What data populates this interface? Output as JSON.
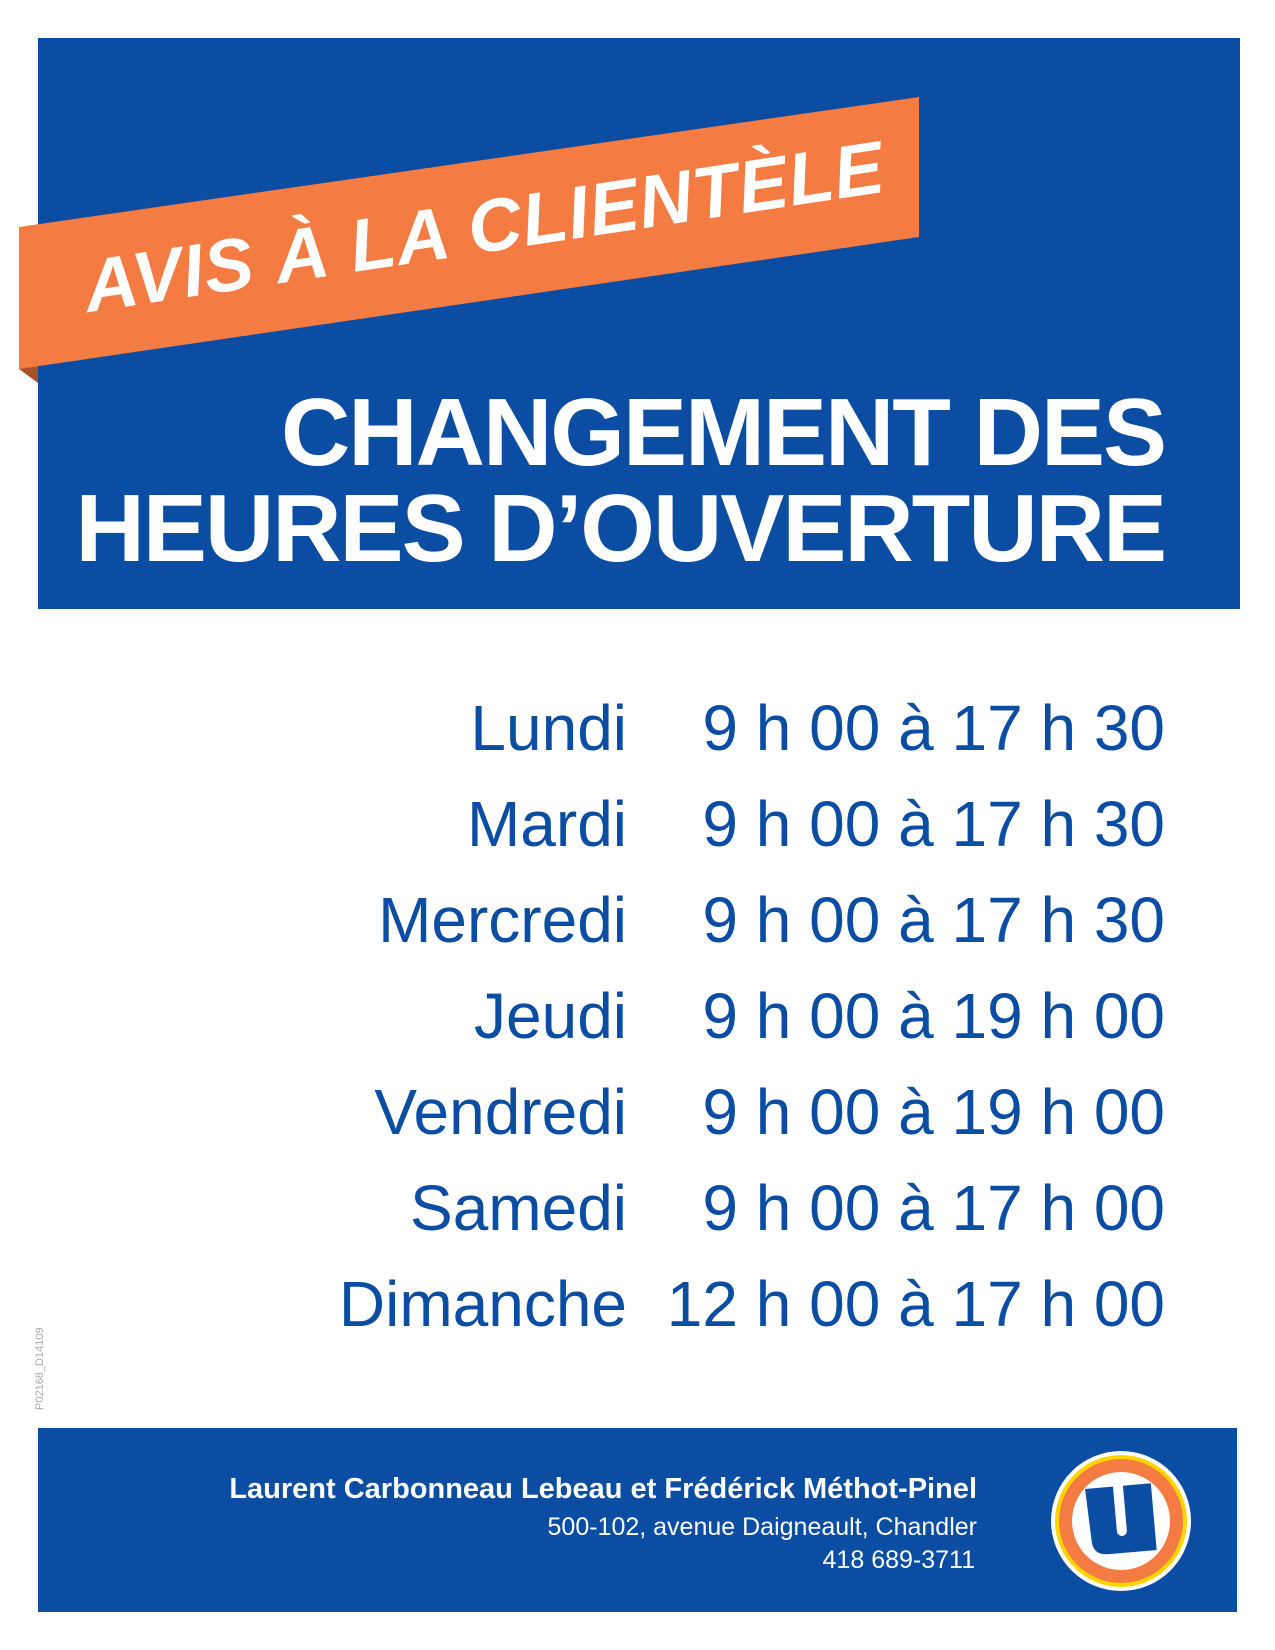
{
  "banner": {
    "text": "AVIS À LA CLIENTÈLE",
    "color": "#f47b42"
  },
  "headline": {
    "line1": "CHANGEMENT DES",
    "line2": "HEURES D’OUVERTURE"
  },
  "schedule": [
    {
      "day": "Lundi",
      "hours": "9 h 00 à 17 h 30"
    },
    {
      "day": "Mardi",
      "hours": "9 h 00 à 17 h 30"
    },
    {
      "day": "Mercredi",
      "hours": "9 h 00 à 17 h 30"
    },
    {
      "day": "Jeudi",
      "hours": "9 h 00 à 19 h 00"
    },
    {
      "day": "Vendredi",
      "hours": "9 h 00 à 19 h 00"
    },
    {
      "day": "Samedi",
      "hours": "9 h 00 à 17 h 00"
    },
    {
      "day": "Dimanche",
      "hours": "12 h 00 à 17 h 00"
    }
  ],
  "code": "P02168_D14109",
  "footer": {
    "owners": "Laurent Carbonneau Lebeau et Frédérick Méthot-Pinel",
    "address": "500-102, avenue Daigneault, Chandler",
    "phone": "418 689-3711",
    "logo_letter": "U"
  },
  "colors": {
    "blue": "#0a4da2",
    "orange": "#f47b42",
    "yellow": "#ffd500"
  }
}
